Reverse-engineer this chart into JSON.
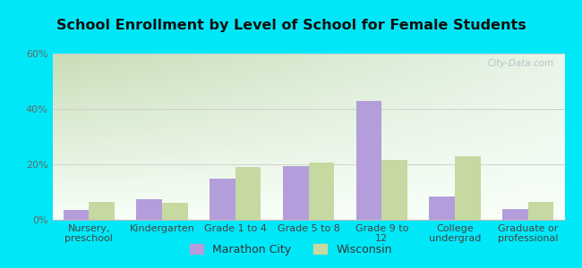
{
  "title": "School Enrollment by Level of School for Female Students",
  "categories": [
    "Nursery,\npreschool",
    "Kindergarten",
    "Grade 1 to 4",
    "Grade 5 to 8",
    "Grade 9 to\n12",
    "College\nundergrad",
    "Graduate or\nprofessional"
  ],
  "marathon_city": [
    3.5,
    7.5,
    15.0,
    19.5,
    43.0,
    8.5,
    4.0
  ],
  "wisconsin": [
    6.5,
    6.0,
    19.0,
    20.5,
    21.5,
    23.0,
    6.5
  ],
  "bar_color_marathon": "#b39ddb",
  "bar_color_wisconsin": "#c5d9a0",
  "ylim": [
    0,
    60
  ],
  "yticks": [
    0,
    20,
    40,
    60
  ],
  "ytick_labels": [
    "0%",
    "20%",
    "40%",
    "60%"
  ],
  "legend_labels": [
    "Marathon City",
    "Wisconsin"
  ],
  "background_outer": "#00e8f8",
  "grid_color": "#d0d0d0",
  "title_fontsize": 11.5,
  "tick_fontsize": 8,
  "legend_fontsize": 9,
  "bar_width": 0.35,
  "grad_top_left": "#c8ddb8",
  "grad_top_right": "#e8f5e8",
  "grad_bottom": "#f8fff8"
}
